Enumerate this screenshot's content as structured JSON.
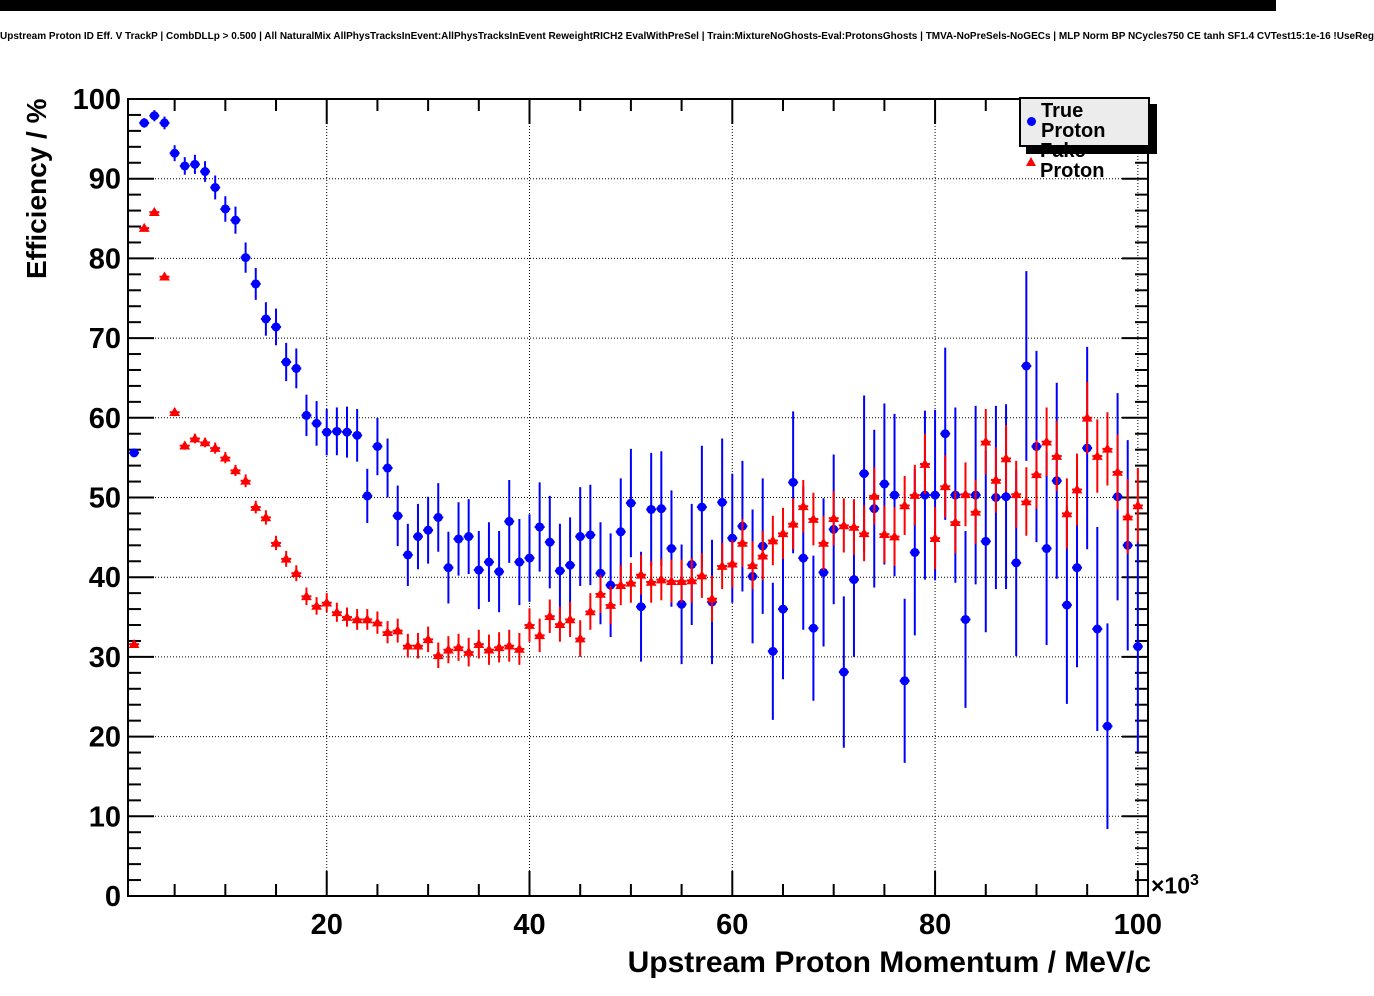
{
  "title": "Upstream Proton ID Eff. V TrackP | CombDLLp > 0.500 | All NaturalMix AllPhysTracksInEvent:AllPhysTracksInEvent ReweightRICH2 EvalWithPreSel | Train:MixtureNoGhosts-Eval:ProtonsGhosts | TMVA-NoPreSels-NoGECs | MLP Norm BP NCycles750 CE tanh SF1.4 CVTest15:1e-16 !UseReg",
  "legend": {
    "items": [
      {
        "label": "True Proton",
        "color": "#0000ff",
        "marker": "circle"
      },
      {
        "label": "Fake Proton",
        "color": "#ff0000",
        "marker": "triangle"
      }
    ]
  },
  "chart_data": {
    "type": "scatter",
    "title": "Upstream Proton ID Eff. V TrackP | CombDLLp > 0.500 | All NaturalMix AllPhysTracksInEvent:AllPhysTracksInEvent ReweightRICH2 EvalWithPreSel | Train:MixtureNoGhosts-Eval:ProtonsGhosts | TMVA-NoPreSels-NoGECs | MLP Norm BP NCycles750 CE tanh SF1.4 CVTest15:1e-16 !UseReg",
    "xlabel": "Upstream Proton Momentum / MeV/c",
    "ylabel": "Efficiency / %",
    "x_multiplier_base": "×10",
    "x_multiplier_exp": "3",
    "x_units": "10^3 MeV/c",
    "xlim": [
      0.4,
      101.0
    ],
    "ylim": [
      0,
      100
    ],
    "x_tick_values": [
      20,
      40,
      60,
      80,
      100
    ],
    "x_tick_labels": [
      "20",
      "40",
      "60",
      "80",
      "100"
    ],
    "x_minor_step": 5,
    "x_major_step": 20,
    "y_tick_values": [
      0,
      10,
      20,
      30,
      40,
      50,
      60,
      70,
      80,
      90,
      100
    ],
    "y_tick_labels": [
      "0",
      "10",
      "20",
      "30",
      "40",
      "50",
      "60",
      "70",
      "80",
      "90",
      "100"
    ],
    "y_minor_step": 2,
    "y_major_step": 10,
    "grid": "dotted",
    "legend_position": "top-right",
    "x": [
      1,
      2,
      3,
      4,
      5,
      6,
      7,
      8,
      9,
      10,
      11,
      12,
      13,
      14,
      15,
      16,
      17,
      18,
      19,
      20,
      21,
      22,
      23,
      24,
      25,
      26,
      27,
      28,
      29,
      30,
      31,
      32,
      33,
      34,
      35,
      36,
      37,
      38,
      39,
      40,
      41,
      42,
      43,
      44,
      45,
      46,
      47,
      48,
      49,
      50,
      51,
      52,
      53,
      54,
      55,
      56,
      57,
      58,
      59,
      60,
      61,
      62,
      63,
      64,
      65,
      66,
      67,
      68,
      69,
      70,
      71,
      72,
      73,
      74,
      75,
      76,
      77,
      78,
      79,
      80,
      81,
      82,
      83,
      84,
      85,
      86,
      87,
      88,
      89,
      90,
      91,
      92,
      93,
      94,
      95,
      96,
      97,
      98,
      99,
      100
    ],
    "series": [
      {
        "name": "True Proton",
        "color": "#0000ff",
        "marker": "circle",
        "y": [
          55.6,
          97.0,
          97.9,
          97.0,
          93.2,
          91.6,
          91.8,
          90.9,
          88.9,
          86.2,
          84.8,
          80.1,
          76.8,
          72.4,
          71.4,
          67.0,
          66.2,
          60.3,
          59.3,
          58.2,
          58.3,
          58.2,
          57.8,
          50.2,
          56.4,
          53.7,
          47.7,
          42.8,
          45.1,
          45.9,
          47.5,
          41.2,
          44.8,
          45.1,
          40.9,
          41.9,
          40.7,
          47.0,
          41.9,
          42.4,
          46.3,
          44.4,
          40.8,
          41.5,
          45.1,
          45.3,
          40.5,
          39.0,
          45.7,
          49.3,
          36.3,
          48.5,
          48.6,
          43.6,
          36.6,
          41.6,
          48.8,
          36.9,
          49.4,
          44.9,
          46.4,
          40.1,
          43.9,
          30.7,
          36.0,
          51.9,
          42.4,
          33.6,
          40.6,
          46.0,
          28.1,
          39.7,
          53.0,
          48.6,
          51.7,
          50.3,
          27.0,
          43.1,
          50.3,
          50.3,
          58.0,
          50.3,
          34.7,
          50.3,
          44.5,
          50.0,
          50.1,
          41.8,
          66.5,
          56.4,
          43.6,
          52.1,
          36.5,
          41.2,
          56.2,
          33.5,
          21.3,
          50.1,
          44.0,
          31.3
        ],
        "yerr": [
          0.4,
          0.6,
          0.7,
          0.8,
          1.0,
          1.1,
          1.2,
          1.3,
          1.5,
          1.6,
          1.7,
          1.9,
          2.0,
          2.1,
          2.3,
          2.4,
          2.5,
          2.6,
          2.8,
          2.9,
          3.0,
          3.2,
          3.3,
          3.4,
          3.6,
          3.7,
          3.8,
          3.9,
          4.1,
          4.2,
          4.3,
          4.5,
          4.6,
          4.7,
          4.9,
          5.0,
          5.1,
          5.2,
          5.4,
          5.5,
          5.6,
          5.8,
          5.9,
          6.0,
          6.2,
          6.3,
          6.4,
          6.5,
          6.7,
          6.8,
          6.9,
          7.1,
          7.2,
          7.3,
          7.5,
          7.6,
          7.7,
          7.8,
          8.0,
          8.1,
          8.2,
          8.4,
          8.5,
          8.6,
          8.8,
          8.9,
          9.0,
          9.1,
          9.3,
          9.4,
          9.5,
          9.7,
          9.8,
          9.9,
          10.1,
          10.2,
          10.3,
          10.4,
          10.6,
          10.7,
          10.8,
          11.0,
          11.1,
          11.2,
          11.4,
          11.5,
          11.6,
          11.7,
          11.9,
          12.0,
          12.1,
          12.3,
          12.4,
          12.5,
          12.7,
          12.8,
          12.9,
          13.0,
          13.2,
          13.3
        ]
      },
      {
        "name": "Fake Proton",
        "color": "#ff0000",
        "marker": "triangle",
        "y": [
          31.6,
          83.8,
          85.8,
          77.7,
          60.7,
          56.5,
          57.4,
          56.9,
          56.2,
          55.0,
          53.4,
          52.1,
          48.8,
          47.5,
          44.3,
          42.3,
          40.5,
          37.6,
          36.4,
          36.8,
          35.6,
          35.0,
          34.7,
          34.7,
          34.3,
          33.1,
          33.3,
          31.4,
          31.4,
          32.2,
          30.2,
          30.9,
          31.2,
          30.6,
          31.6,
          30.9,
          31.2,
          31.4,
          31.0,
          34.0,
          32.7,
          35.1,
          34.1,
          34.7,
          32.3,
          35.7,
          37.9,
          36.5,
          39.0,
          39.3,
          40.3,
          39.4,
          39.7,
          39.5,
          39.5,
          39.6,
          40.2,
          37.3,
          41.4,
          41.7,
          44.3,
          41.5,
          42.7,
          44.6,
          45.5,
          46.7,
          48.9,
          47.3,
          44.3,
          47.4,
          46.5,
          46.3,
          45.5,
          50.2,
          45.4,
          45.1,
          49.0,
          50.3,
          54.2,
          44.9,
          51.4,
          46.9,
          50.4,
          48.2,
          57.0,
          52.2,
          54.9,
          50.4,
          49.5,
          52.9,
          57.0,
          55.2,
          48.0,
          51.0,
          60.0,
          55.2,
          56.1,
          53.2,
          47.6,
          49.0
        ],
        "yerr": [
          0.3,
          0.3,
          0.4,
          0.4,
          0.5,
          0.5,
          0.6,
          0.6,
          0.7,
          0.7,
          0.7,
          0.8,
          0.8,
          0.9,
          0.9,
          1.0,
          1.0,
          1.1,
          1.1,
          1.2,
          1.2,
          1.2,
          1.3,
          1.3,
          1.4,
          1.4,
          1.5,
          1.5,
          1.6,
          1.6,
          1.6,
          1.7,
          1.7,
          1.8,
          1.8,
          1.9,
          1.9,
          2.0,
          2.0,
          2.1,
          2.1,
          2.1,
          2.2,
          2.2,
          2.3,
          2.3,
          2.4,
          2.4,
          2.5,
          2.5,
          2.5,
          2.6,
          2.6,
          2.7,
          2.7,
          2.8,
          2.8,
          2.9,
          2.9,
          3.0,
          3.0,
          3.0,
          3.1,
          3.1,
          3.2,
          3.2,
          3.3,
          3.3,
          3.4,
          3.4,
          3.4,
          3.5,
          3.5,
          3.6,
          3.6,
          3.7,
          3.7,
          3.8,
          3.8,
          3.9,
          3.9,
          3.9,
          4.0,
          4.0,
          4.1,
          4.1,
          4.2,
          4.2,
          4.3,
          4.3,
          4.3,
          4.4,
          4.4,
          4.5,
          4.5,
          4.6,
          4.6,
          4.7,
          4.7,
          4.7
        ]
      }
    ]
  }
}
